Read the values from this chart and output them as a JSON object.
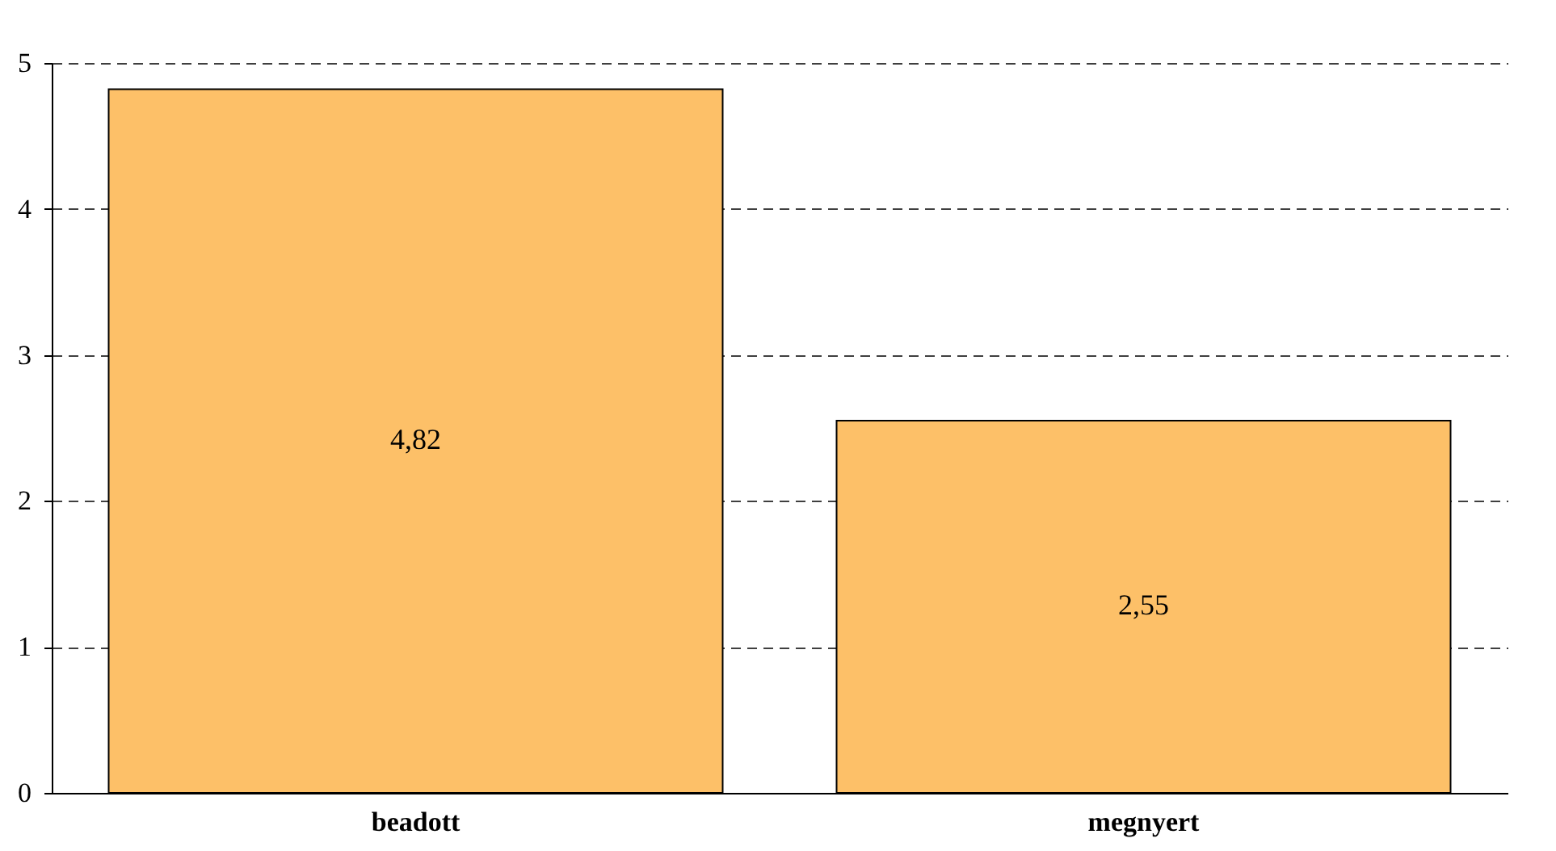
{
  "chart_data": {
    "type": "bar",
    "categories": [
      "beadott",
      "megnyert"
    ],
    "values": [
      4.82,
      2.55
    ],
    "value_labels": [
      "4,82",
      "2,55"
    ],
    "color": "#fdc068",
    "ylim": [
      0,
      5
    ],
    "yticks": [
      0,
      1,
      2,
      3,
      4,
      5
    ],
    "grid": "y"
  }
}
